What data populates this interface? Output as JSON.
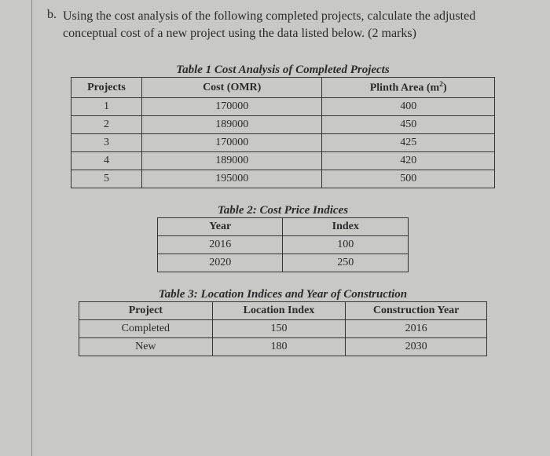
{
  "question": {
    "letter": "b.",
    "text": "Using the cost analysis of the following completed projects, calculate the adjusted conceptual cost of a new project using the data listed below. (2 marks)"
  },
  "table1": {
    "caption": "Table 1 Cost Analysis of Completed Projects",
    "headers": {
      "c1": "Projects",
      "c2": "Cost (OMR)",
      "c3_pre": "Plinth Area (m",
      "c3_sup": "2",
      "c3_post": ")"
    },
    "rows": [
      {
        "c1": "1",
        "c2": "170000",
        "c3": "400"
      },
      {
        "c1": "2",
        "c2": "189000",
        "c3": "450"
      },
      {
        "c1": "3",
        "c2": "170000",
        "c3": "425"
      },
      {
        "c1": "4",
        "c2": "189000",
        "c3": "420"
      },
      {
        "c1": "5",
        "c2": "195000",
        "c3": "500"
      }
    ]
  },
  "table2": {
    "caption": "Table 2: Cost Price Indices",
    "headers": {
      "c1": "Year",
      "c2": "Index"
    },
    "rows": [
      {
        "c1": "2016",
        "c2": "100"
      },
      {
        "c1": "2020",
        "c2": "250"
      }
    ]
  },
  "table3": {
    "caption": "Table 3: Location Indices and Year of Construction",
    "headers": {
      "c1": "Project",
      "c2": "Location Index",
      "c3": "Construction Year"
    },
    "rows": [
      {
        "c1": "Completed",
        "c2": "150",
        "c3": "2016"
      },
      {
        "c1": "New",
        "c2": "180",
        "c3": "2030"
      }
    ]
  },
  "colors": {
    "background": "#c8c8c4",
    "text": "#2a2a2a",
    "border": "#333333"
  }
}
